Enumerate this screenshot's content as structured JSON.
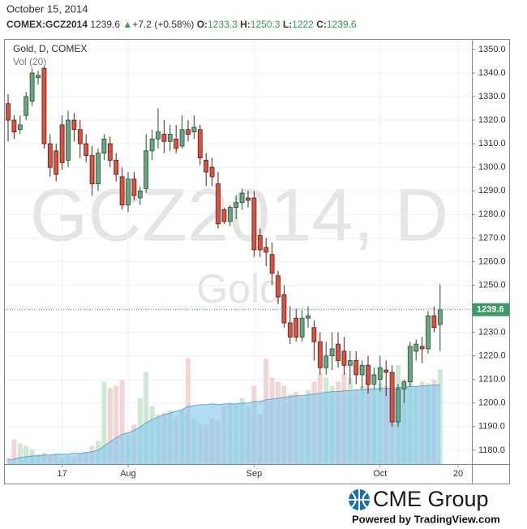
{
  "header": {
    "date": "October 15, 2014",
    "symbol": "COMEX:GCZ2014",
    "arrow": "▲",
    "change": "+7.2 (+0.58%)",
    "o_label": "O:",
    "h_label": "H:",
    "l_label": "L:",
    "c_label": "C:"
  },
  "chart_data": {
    "type": "candlestick",
    "title": "Gold, D, COMEX",
    "volume_label": "Vol (20)",
    "watermark": "GCZ2014, D",
    "watermark_sub": "Gold",
    "categories": [
      null,
      null,
      null,
      null,
      null,
      null,
      null,
      null,
      null,
      "17",
      null,
      null,
      null,
      null,
      null,
      null,
      null,
      null,
      null,
      null,
      "Aug",
      null,
      null,
      null,
      null,
      null,
      null,
      null,
      null,
      null,
      null,
      null,
      null,
      null,
      null,
      null,
      null,
      null,
      null,
      null,
      null,
      "Sep",
      null,
      null,
      null,
      null,
      null,
      null,
      null,
      null,
      null,
      null,
      null,
      null,
      null,
      null,
      null,
      null,
      null,
      null,
      null,
      null,
      "Oct",
      null,
      null,
      null,
      null,
      null,
      null,
      null,
      null,
      null,
      null,
      null,
      null,
      "20"
    ],
    "ohlc": [
      [
        1327,
        1331,
        1311,
        1320
      ],
      [
        1320,
        1322,
        1312,
        1315
      ],
      [
        1316,
        1322,
        1314,
        1318
      ],
      [
        1322,
        1332,
        1320,
        1330
      ],
      [
        1328,
        1342,
        1326,
        1340
      ],
      [
        1338,
        1341,
        1335,
        1339
      ],
      [
        1342,
        1343,
        1308,
        1310
      ],
      [
        1310,
        1314,
        1296,
        1300
      ],
      [
        1307,
        1310,
        1294,
        1297
      ],
      [
        1318,
        1322,
        1299,
        1302
      ],
      [
        1303,
        1324,
        1300,
        1320
      ],
      [
        1320,
        1323,
        1311,
        1316
      ],
      [
        1316,
        1320,
        1304,
        1310
      ],
      [
        1310,
        1314,
        1302,
        1305
      ],
      [
        1305,
        1309,
        1288,
        1293
      ],
      [
        1293,
        1308,
        1290,
        1306
      ],
      [
        1306,
        1314,
        1303,
        1312
      ],
      [
        1310,
        1313,
        1300,
        1303
      ],
      [
        1303,
        1306,
        1294,
        1297
      ],
      [
        1296,
        1300,
        1282,
        1284
      ],
      [
        1284,
        1298,
        1281,
        1295
      ],
      [
        1295,
        1298,
        1286,
        1288
      ],
      [
        1287,
        1292,
        1284,
        1290
      ],
      [
        1291,
        1314,
        1289,
        1307
      ],
      [
        1307,
        1316,
        1303,
        1312
      ],
      [
        1312,
        1325,
        1308,
        1315
      ],
      [
        1314,
        1320,
        1306,
        1311
      ],
      [
        1311,
        1318,
        1307,
        1314
      ],
      [
        1312,
        1318,
        1306,
        1308
      ],
      [
        1309,
        1322,
        1308,
        1316
      ],
      [
        1316,
        1320,
        1311,
        1314
      ],
      [
        1315,
        1322,
        1312,
        1317
      ],
      [
        1316,
        1318,
        1301,
        1304
      ],
      [
        1303,
        1306,
        1292,
        1298
      ],
      [
        1300,
        1304,
        1292,
        1296
      ],
      [
        1293,
        1298,
        1274,
        1276
      ],
      [
        1282,
        1283,
        1276,
        1277
      ],
      [
        1277,
        1284,
        1275,
        1283
      ],
      [
        1283,
        1288,
        1278,
        1285
      ],
      [
        1285,
        1291,
        1282,
        1289
      ],
      [
        1287,
        1290,
        1283,
        1286
      ],
      [
        1287,
        1290,
        1262,
        1265
      ],
      [
        1271,
        1274,
        1262,
        1265
      ],
      [
        1266,
        1270,
        1258,
        1264
      ],
      [
        1263,
        1268,
        1250,
        1255
      ],
      [
        1254,
        1256,
        1242,
        1245
      ],
      [
        1246,
        1250,
        1232,
        1234
      ],
      [
        1234,
        1241,
        1225,
        1228
      ],
      [
        1236,
        1240,
        1226,
        1228
      ],
      [
        1228,
        1240,
        1226,
        1236
      ],
      [
        1236,
        1241,
        1232,
        1237
      ],
      [
        1232,
        1235,
        1218,
        1226
      ],
      [
        1226,
        1230,
        1212,
        1215
      ],
      [
        1215,
        1226,
        1212,
        1220
      ],
      [
        1220,
        1230,
        1214,
        1223
      ],
      [
        1225,
        1230,
        1215,
        1218
      ],
      [
        1222,
        1228,
        1212,
        1216
      ],
      [
        1216,
        1222,
        1208,
        1218
      ],
      [
        1218,
        1222,
        1208,
        1212
      ],
      [
        1212,
        1218,
        1206,
        1216
      ],
      [
        1216,
        1220,
        1204,
        1208
      ],
      [
        1208,
        1215,
        1206,
        1212
      ],
      [
        1210,
        1220,
        1205,
        1215
      ],
      [
        1214,
        1218,
        1203,
        1213
      ],
      [
        1213,
        1216,
        1190,
        1192
      ],
      [
        1192,
        1208,
        1190,
        1206
      ],
      [
        1206,
        1210,
        1200,
        1209
      ],
      [
        1209,
        1226,
        1207,
        1224
      ],
      [
        1222,
        1227,
        1218,
        1225
      ],
      [
        1224,
        1228,
        1217,
        1223
      ],
      [
        1223,
        1239,
        1221,
        1237
      ],
      [
        1237,
        1241,
        1230,
        1232
      ],
      [
        1233.3,
        1250.3,
        1222.0,
        1239.6
      ],
      null,
      null,
      null
    ],
    "volume": [
      8,
      30,
      25,
      22,
      18,
      12,
      14,
      10,
      12,
      8,
      10,
      9,
      12,
      15,
      22,
      28,
      100,
      92,
      95,
      102,
      35,
      48,
      80,
      112,
      70,
      60,
      62,
      65,
      58,
      66,
      128,
      55,
      50,
      48,
      55,
      52,
      70,
      75,
      72,
      80,
      70,
      95,
      60,
      128,
      105,
      100,
      95,
      85,
      88,
      80,
      90,
      100,
      110,
      105,
      95,
      100,
      110,
      105,
      90,
      95,
      100,
      92,
      98,
      95,
      88,
      120,
      95,
      110,
      95,
      100,
      98,
      102,
      115,
      null,
      null,
      null
    ],
    "volume_ma": [
      5,
      6,
      8,
      9,
      10,
      10,
      11,
      11,
      12,
      12,
      12,
      13,
      13,
      14,
      15,
      17,
      22,
      27,
      32,
      36,
      38,
      41,
      45,
      50,
      54,
      57,
      60,
      62,
      64,
      66,
      70,
      71,
      72,
      72,
      73,
      72,
      73,
      73,
      73,
      74,
      74,
      76,
      76,
      78,
      79,
      80,
      81,
      82,
      83,
      83,
      84,
      85,
      86,
      87,
      88,
      88,
      89,
      89,
      90,
      90,
      91,
      91,
      92,
      92,
      92,
      93,
      93,
      94,
      94,
      95,
      95,
      96,
      96,
      null,
      null,
      null
    ],
    "ylim": [
      1174.1,
      1354.1
    ],
    "yticks": [
      {
        "value": 1180,
        "label": "1180.0"
      },
      {
        "value": 1190,
        "label": "1190.0"
      },
      {
        "value": 1200,
        "label": "1200.0"
      },
      {
        "value": 1210,
        "label": "1210.0"
      },
      {
        "value": 1220,
        "label": "1220.0"
      },
      {
        "value": 1230,
        "label": "1230.0"
      },
      {
        "value": 1240,
        "label": "1240.0"
      },
      {
        "value": 1250,
        "label": "1250.0"
      },
      {
        "value": 1260,
        "label": "1260.0"
      },
      {
        "value": 1270,
        "label": "1270.0"
      },
      {
        "value": 1280,
        "label": "1280.0"
      },
      {
        "value": 1290,
        "label": "1290.0"
      },
      {
        "value": 1300,
        "label": "1300.0"
      },
      {
        "value": 1310,
        "label": "1310.0"
      },
      {
        "value": 1320,
        "label": "1320.0"
      },
      {
        "value": 1330,
        "label": "1330.0"
      },
      {
        "value": 1340,
        "label": "1340.0"
      },
      {
        "value": 1350,
        "label": "1350.0"
      }
    ],
    "grid": true,
    "up_color": "#6ba583",
    "up_stroke": "#1f5030",
    "down_color": "#d75442",
    "down_stroke": "#5b1a13",
    "volume_up_color": "#cfe8d4",
    "volume_down_color": "#f0d6d6",
    "volume_ma_color": "#7fc6ec"
  },
  "footer": {
    "brand": "CME Group",
    "powered": "Powered by TradingView.com"
  }
}
